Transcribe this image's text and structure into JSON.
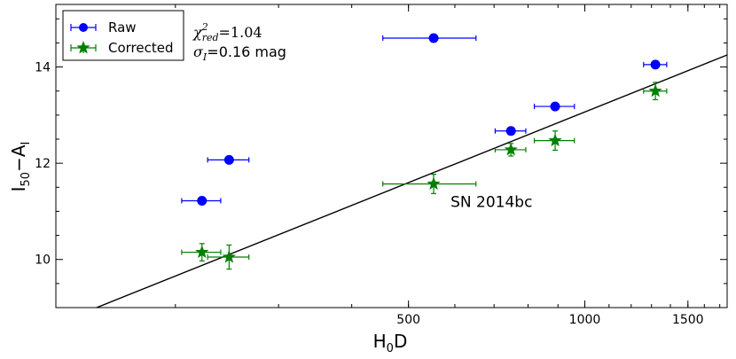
{
  "chart_data": {
    "type": "scatter",
    "xlabel": "H",
    "xlabel_sub": "0",
    "xlabel_tail": "D",
    "ylabel": "I",
    "ylabel_sub": "50",
    "ylabel_mid": "−A",
    "ylabel_sub2": "I",
    "x_scale": "log",
    "xlim": [
      125,
      1750
    ],
    "ylim": [
      9.0,
      15.3
    ],
    "x_ticks": [
      500,
      1000,
      1500
    ],
    "x_tick_labels": [
      "500",
      "1000",
      "1500"
    ],
    "y_ticks": [
      10,
      12,
      14
    ],
    "y_tick_labels": [
      "10",
      "12",
      "14"
    ],
    "grid": false,
    "legend_position": "top-left",
    "annotation_chi": "χ",
    "annotation_chi_sup": "2",
    "annotation_chi_sub": "red",
    "annotation_chi_val": "=1.04",
    "annotation_sigma": "σ",
    "annotation_sigma_sub": "I",
    "annotation_sigma_val": "=0.16 mag",
    "point_label": {
      "text": "SN 2014bc",
      "x": 590,
      "y": 11.2
    },
    "series": [
      {
        "name": "Raw",
        "marker": "circle",
        "color": "#0000ff",
        "points": [
          {
            "x": 222,
            "y": 11.22,
            "xerr": 17,
            "yerr": 0.05
          },
          {
            "x": 247,
            "y": 12.07,
            "xerr": 20,
            "yerr": 0.05
          },
          {
            "x": 552,
            "y": 14.6,
            "xerr": 100,
            "yerr": 0.08
          },
          {
            "x": 748,
            "y": 12.67,
            "xerr": 45,
            "yerr": 0.05
          },
          {
            "x": 890,
            "y": 13.18,
            "xerr": 70,
            "yerr": 0.05
          },
          {
            "x": 1320,
            "y": 14.05,
            "xerr": 60,
            "yerr": 0.05
          }
        ]
      },
      {
        "name": "Corrected",
        "marker": "star",
        "color": "#007f00",
        "points": [
          {
            "x": 222,
            "y": 10.15,
            "xerr": 17,
            "yerr": 0.18
          },
          {
            "x": 247,
            "y": 10.05,
            "xerr": 20,
            "yerr": 0.25
          },
          {
            "x": 552,
            "y": 11.57,
            "xerr": 100,
            "yerr": 0.2
          },
          {
            "x": 748,
            "y": 12.28,
            "xerr": 45,
            "yerr": 0.13
          },
          {
            "x": 890,
            "y": 12.47,
            "xerr": 70,
            "yerr": 0.2
          },
          {
            "x": 1320,
            "y": 13.5,
            "xerr": 60,
            "yerr": 0.18
          }
        ]
      }
    ],
    "fit_line": {
      "x": [
        140,
        1750
      ],
      "y": [
        8.9,
        14.25
      ]
    }
  }
}
